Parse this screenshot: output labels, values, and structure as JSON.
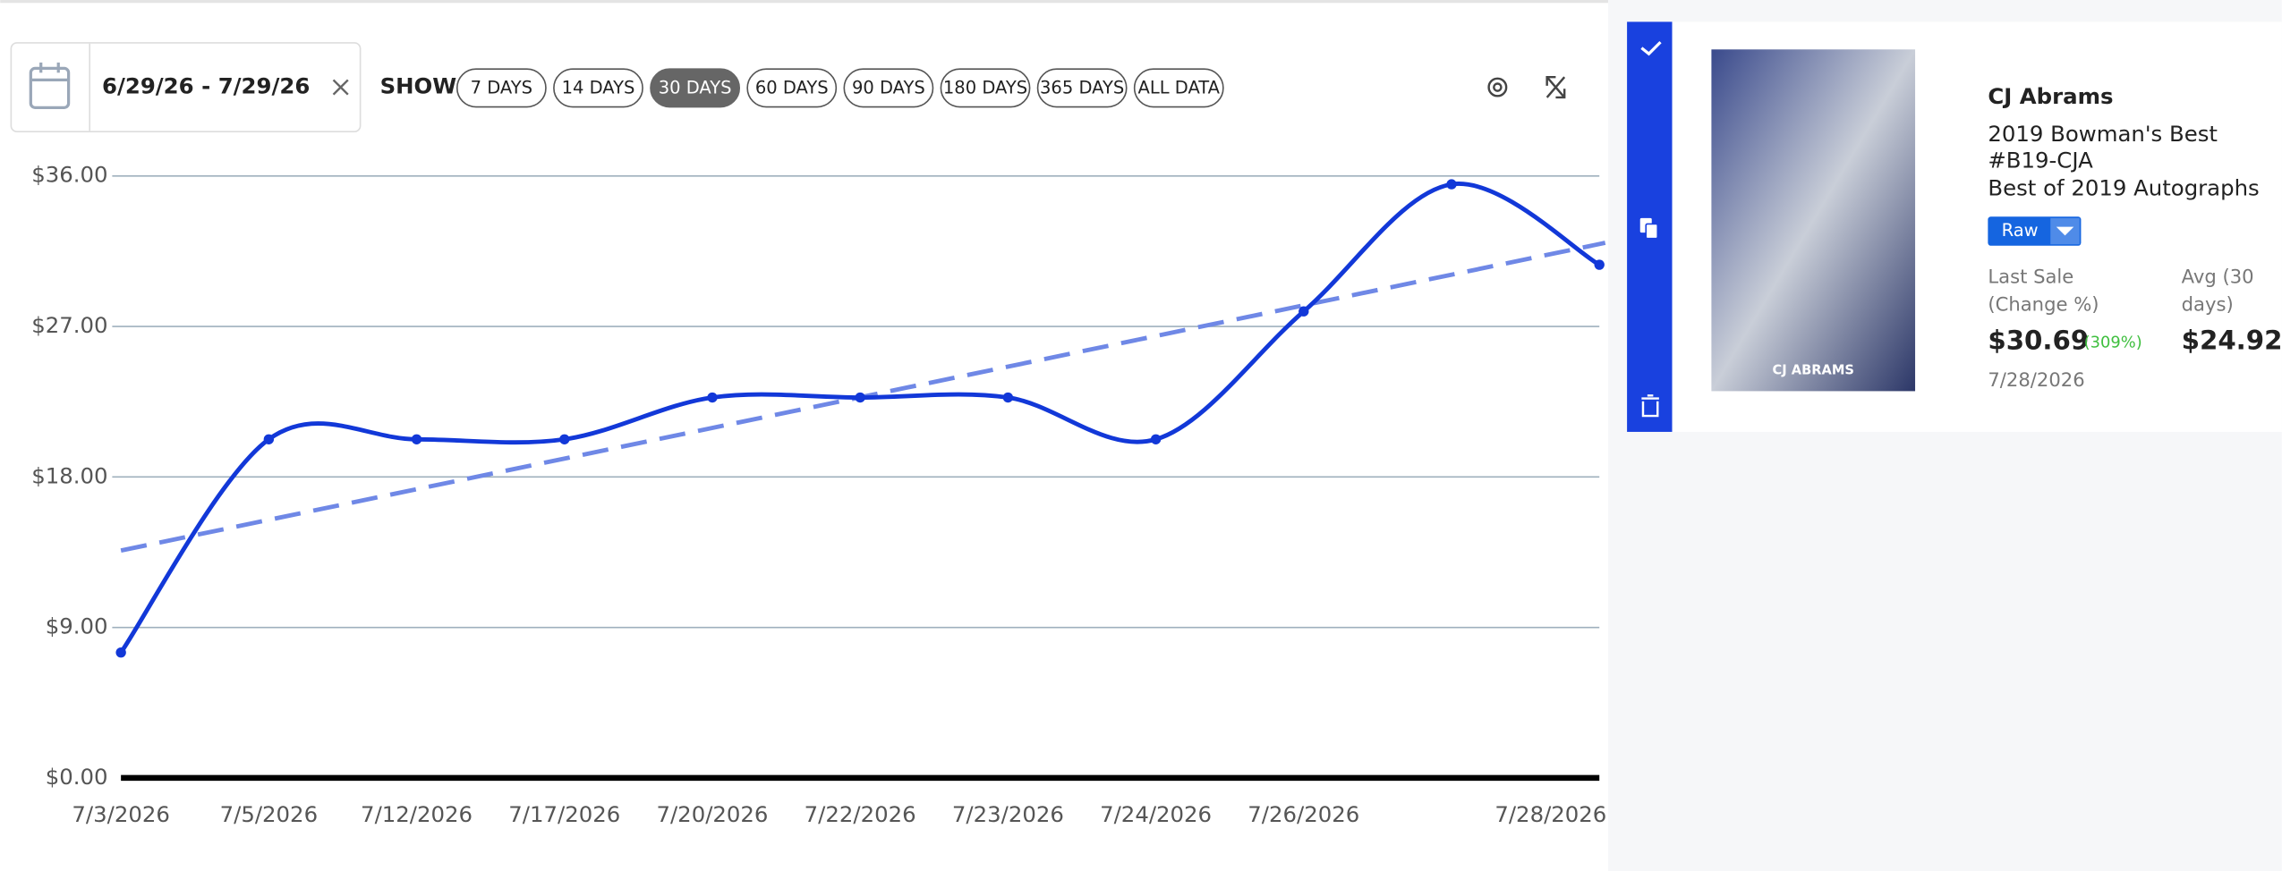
{
  "toolbar": {
    "date_range": "6/29/26 - 7/29/26",
    "show_label": "SHOW",
    "ranges": [
      "7 DAYS",
      "14 DAYS",
      "30 DAYS",
      "60 DAYS",
      "90 DAYS",
      "180 DAYS",
      "365 DAYS",
      "ALL DATA"
    ],
    "active_range": 2
  },
  "chart_data": {
    "type": "line",
    "categories": [
      "7/3/2026",
      "7/5/2026",
      "7/12/2026",
      "7/17/2026",
      "7/20/2026",
      "7/22/2026",
      "7/23/2026",
      "7/24/2026",
      "7/26/2026",
      null,
      "7/28/2026"
    ],
    "series": [
      {
        "color": "#1238d8",
        "values": [
          7.5,
          20.25,
          20.25,
          20.25,
          22.75,
          22.75,
          22.75,
          20.25,
          27.9,
          35.5,
          30.69
        ]
      }
    ],
    "trend": {
      "start": 13.6,
      "end": 32,
      "color": "#6f88e6"
    },
    "ylim": [
      0,
      36
    ],
    "yticks": [
      {
        "value": 0,
        "label": "$0.00"
      },
      {
        "value": 9,
        "label": "$9.00"
      },
      {
        "value": 18,
        "label": "$18.00"
      },
      {
        "value": 27,
        "label": "$27.00"
      },
      {
        "value": 36,
        "label": "$36.00"
      }
    ],
    "grid": true
  },
  "card": {
    "player": "CJ Abrams",
    "set": "2019 Bowman's Best",
    "number": "#B19-CJA",
    "subset": "Best of 2019 Autographs",
    "grade": "Raw",
    "last_sale_label": [
      "Last Sale",
      "(Change %)"
    ],
    "last_sale": "$30.69",
    "change": "(309%)",
    "last_sale_date": "7/28/2026",
    "avg_label": [
      "Avg (30",
      "days)"
    ],
    "avg": "$24.92",
    "image_caption": "CJ ABRAMS"
  }
}
